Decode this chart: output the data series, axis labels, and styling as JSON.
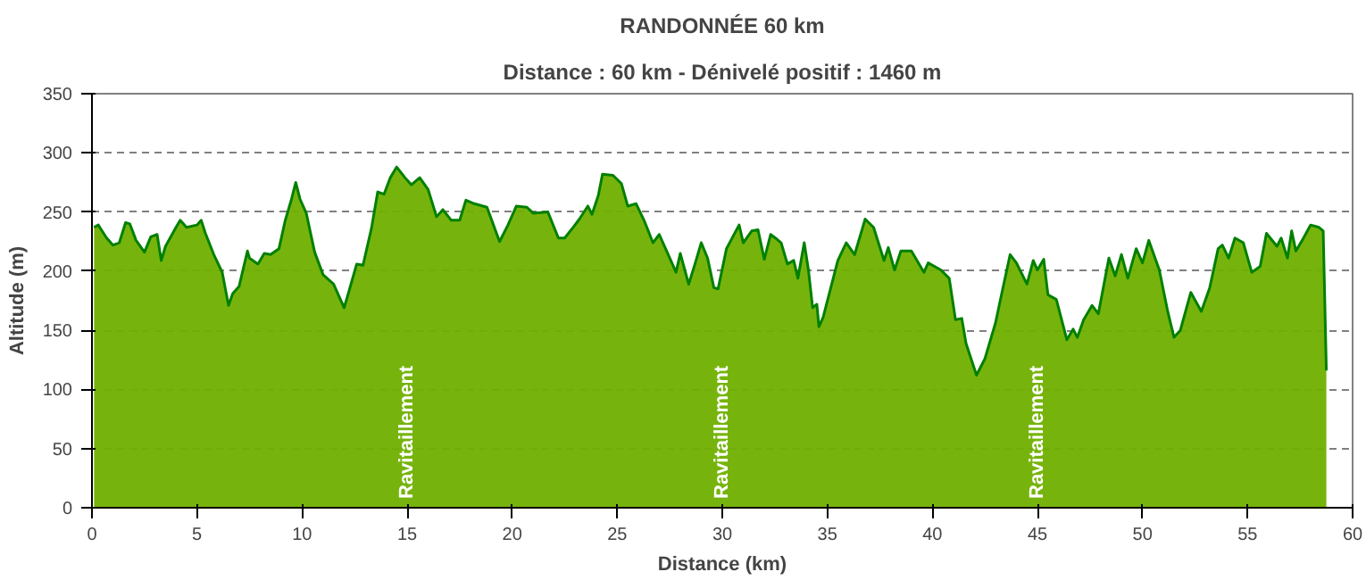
{
  "chart_data": {
    "type": "area",
    "title": "RANDONNÉE 60 km",
    "subtitle": "Distance : 60 km - Dénivelé positif : 1460 m",
    "xlabel": "Distance (km)",
    "ylabel": "Altitude (m)",
    "x": [
      0.1,
      0.3,
      0.7,
      1.0,
      1.3,
      1.6,
      1.8,
      2.1,
      2.5,
      2.8,
      3.1,
      3.3,
      3.5,
      4.0,
      4.2,
      4.5,
      5.0,
      5.2,
      5.4,
      5.8,
      6.2,
      6.5,
      6.7,
      7.0,
      7.4,
      7.5,
      7.9,
      8.2,
      8.5,
      8.9,
      9.2,
      9.5,
      9.7,
      9.9,
      10.2,
      10.6,
      11.0,
      11.5,
      12.0,
      12.2,
      12.6,
      12.9,
      13.3,
      13.6,
      13.9,
      14.2,
      14.5,
      14.9,
      15.2,
      15.6,
      16.0,
      16.4,
      16.7,
      17.1,
      17.5,
      17.8,
      18.2,
      18.8,
      19.4,
      19.8,
      20.2,
      20.7,
      21.0,
      21.7,
      22.2,
      22.5,
      22.9,
      23.2,
      23.6,
      23.8,
      24.1,
      24.3,
      24.8,
      25.2,
      25.5,
      25.9,
      26.3,
      26.7,
      27.0,
      27.3,
      27.8,
      28.0,
      28.4,
      28.7,
      29.0,
      29.3,
      29.6,
      29.8,
      30.2,
      30.8,
      31.0,
      31.4,
      31.7,
      32.0,
      32.3,
      32.6,
      32.8,
      33.1,
      33.4,
      33.6,
      33.9,
      34.1,
      34.3,
      34.5,
      34.6,
      34.8,
      35.5,
      35.9,
      36.3,
      36.8,
      37.2,
      37.7,
      37.9,
      38.2,
      38.5,
      39.0,
      39.6,
      39.8,
      40.4,
      40.8,
      41.1,
      41.4,
      41.6,
      42.1,
      42.5,
      43.0,
      43.3,
      43.7,
      44.0,
      44.5,
      44.8,
      45.0,
      45.3,
      45.5,
      45.9,
      46.4,
      46.7,
      46.9,
      47.2,
      47.6,
      47.9,
      48.4,
      48.7,
      49.0,
      49.3,
      49.7,
      50.0,
      50.3,
      50.8,
      51.2,
      51.5,
      51.8,
      52.3,
      52.8,
      53.2,
      53.6,
      53.8,
      54.1,
      54.4,
      54.8,
      55.2,
      55.6,
      55.9,
      56.4,
      56.6,
      56.9,
      57.1,
      57.3,
      57.6,
      58.0,
      58.4,
      58.6,
      58.75
    ],
    "series": [
      {
        "color": "#008000",
        "values": [
          237,
          239,
          228,
          222,
          224,
          241,
          240,
          226,
          216,
          229,
          231,
          209,
          221,
          237,
          243,
          237,
          239,
          243,
          232,
          214,
          199,
          171,
          181,
          187,
          217,
          211,
          206,
          215,
          214,
          219,
          243,
          261,
          275,
          261,
          249,
          216,
          197,
          189,
          169,
          181,
          206,
          205,
          236,
          267,
          265,
          279,
          288,
          279,
          273,
          279,
          269,
          246,
          252,
          243,
          243,
          260,
          257,
          254,
          225,
          239,
          255,
          254,
          249,
          250,
          228,
          228,
          237,
          244,
          255,
          248,
          264,
          282,
          281,
          274,
          255,
          257,
          242,
          224,
          231,
          219,
          199,
          215,
          189,
          206,
          224,
          211,
          186,
          185,
          219,
          239,
          224,
          234,
          235,
          210,
          231,
          227,
          224,
          206,
          209,
          194,
          224,
          201,
          169,
          172,
          153,
          161,
          209,
          224,
          214,
          244,
          237,
          209,
          220,
          201,
          217,
          217,
          199,
          207,
          201,
          194,
          159,
          160,
          139,
          112,
          126,
          156,
          181,
          214,
          207,
          189,
          209,
          201,
          210,
          180,
          176,
          142,
          151,
          144,
          159,
          171,
          164,
          211,
          196,
          214,
          194,
          219,
          207,
          226,
          201,
          166,
          144,
          150,
          182,
          166,
          186,
          219,
          222,
          211,
          228,
          224,
          199,
          204,
          232,
          221,
          228,
          211,
          234,
          217,
          226,
          239,
          237,
          234,
          116
        ]
      }
    ],
    "xlim": [
      0,
      60
    ],
    "ylim": [
      0,
      350
    ],
    "xticks": [
      0,
      5,
      10,
      15,
      20,
      25,
      30,
      35,
      40,
      45,
      50,
      55,
      60
    ],
    "yticks": [
      0,
      50,
      100,
      150,
      200,
      250,
      300,
      350
    ],
    "grid": "y",
    "line_style": "solid",
    "annotations": [
      "Ravitaillement",
      "Ravitaillement",
      "Ravitaillement"
    ]
  }
}
